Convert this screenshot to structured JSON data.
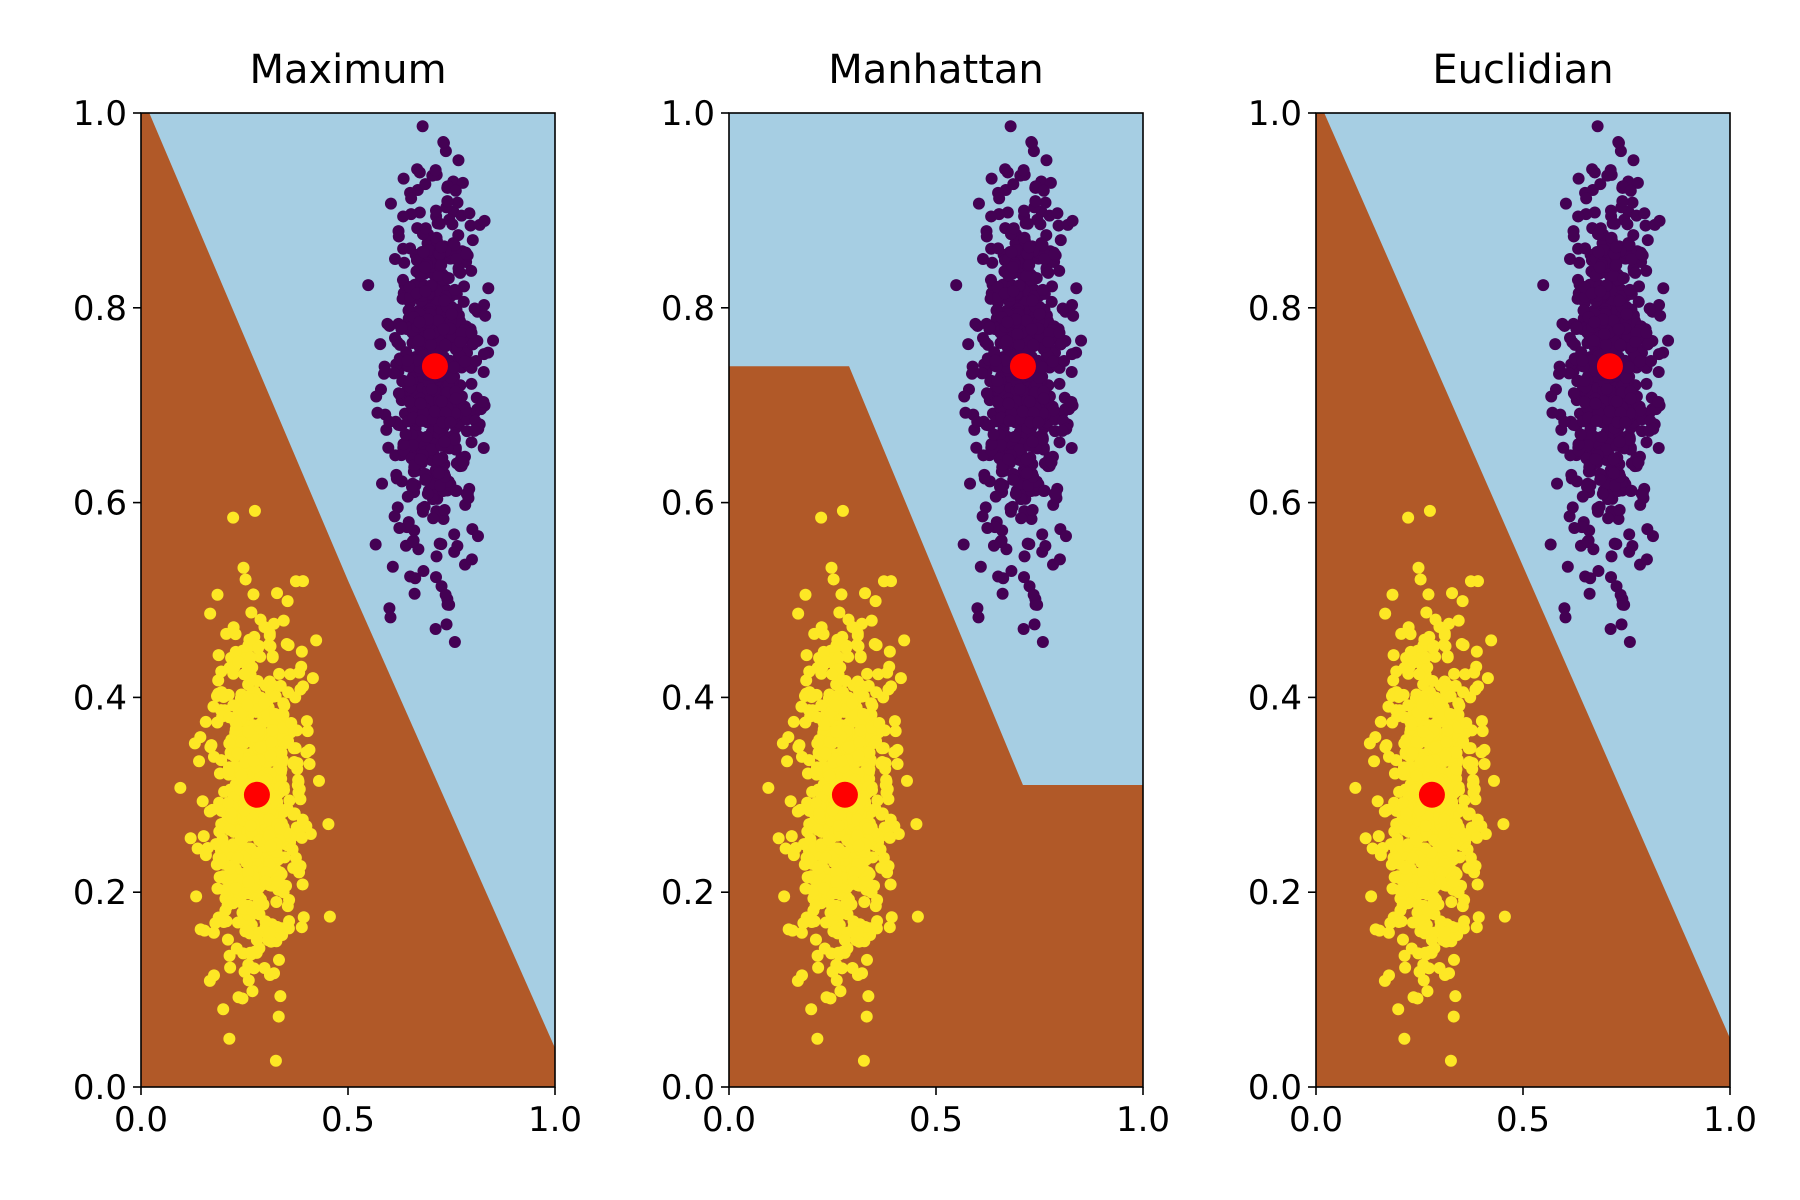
{
  "chart_data": [
    {
      "type": "scatter",
      "title": "Maximum",
      "xlabel": "",
      "ylabel": "",
      "xlim": [
        0,
        1
      ],
      "ylim": [
        0,
        1
      ],
      "xticks": [
        "0.0",
        "0.5",
        "1.0"
      ],
      "yticks": [
        "0.0",
        "0.2",
        "0.4",
        "0.6",
        "0.8",
        "1.0"
      ],
      "grid": false,
      "legend": "none",
      "regions": [
        {
          "class": "upper",
          "color": "#a6cee3",
          "boundary": [
            [
              0.02,
              1.0
            ],
            [
              0.5,
              0.52
            ],
            [
              1.0,
              0.04
            ]
          ]
        },
        {
          "class": "lower",
          "color": "#b15928"
        }
      ],
      "series": [
        {
          "color": "#440154",
          "center": [
            0.71,
            0.74
          ],
          "spread": [
            0.055,
            0.09
          ]
        },
        {
          "color": "#fde725",
          "center": [
            0.28,
            0.3
          ],
          "spread": [
            0.055,
            0.09
          ]
        }
      ],
      "centroids": [
        {
          "x": 0.71,
          "y": 0.74,
          "color": "#ff0000"
        },
        {
          "x": 0.28,
          "y": 0.3,
          "color": "#ff0000"
        }
      ]
    },
    {
      "type": "scatter",
      "title": "Manhattan",
      "xlabel": "",
      "ylabel": "",
      "xlim": [
        0,
        1
      ],
      "ylim": [
        0,
        1
      ],
      "xticks": [
        "0.0",
        "0.5",
        "1.0"
      ],
      "yticks": [
        "0.0",
        "0.2",
        "0.4",
        "0.6",
        "0.8",
        "1.0"
      ],
      "grid": false,
      "legend": "none",
      "regions": [
        {
          "class": "upper",
          "color": "#a6cee3",
          "boundary": [
            [
              0.0,
              0.74
            ],
            [
              0.29,
              0.74
            ],
            [
              0.71,
              0.31
            ],
            [
              1.0,
              0.31
            ]
          ]
        },
        {
          "class": "lower",
          "color": "#b15928"
        }
      ],
      "series": [
        {
          "color": "#440154",
          "center": [
            0.71,
            0.74
          ],
          "spread": [
            0.055,
            0.09
          ]
        },
        {
          "color": "#fde725",
          "center": [
            0.28,
            0.3
          ],
          "spread": [
            0.055,
            0.09
          ]
        }
      ],
      "centroids": [
        {
          "x": 0.71,
          "y": 0.74,
          "color": "#ff0000"
        },
        {
          "x": 0.28,
          "y": 0.3,
          "color": "#ff0000"
        }
      ]
    },
    {
      "type": "scatter",
      "title": "Euclidian",
      "xlabel": "",
      "ylabel": "",
      "xlim": [
        0,
        1
      ],
      "ylim": [
        0,
        1
      ],
      "xticks": [
        "0.0",
        "0.5",
        "1.0"
      ],
      "yticks": [
        "0.0",
        "0.2",
        "0.4",
        "0.6",
        "0.8",
        "1.0"
      ],
      "grid": false,
      "legend": "none",
      "regions": [
        {
          "class": "upper",
          "color": "#a6cee3",
          "boundary": [
            [
              0.02,
              1.0
            ],
            [
              1.0,
              0.05
            ]
          ]
        },
        {
          "class": "lower",
          "color": "#b15928"
        }
      ],
      "series": [
        {
          "color": "#440154",
          "center": [
            0.71,
            0.74
          ],
          "spread": [
            0.055,
            0.09
          ]
        },
        {
          "color": "#fde725",
          "center": [
            0.28,
            0.3
          ],
          "spread": [
            0.055,
            0.09
          ]
        }
      ],
      "centroids": [
        {
          "x": 0.71,
          "y": 0.74,
          "color": "#ff0000"
        },
        {
          "x": 0.28,
          "y": 0.3,
          "color": "#ff0000"
        }
      ]
    }
  ]
}
